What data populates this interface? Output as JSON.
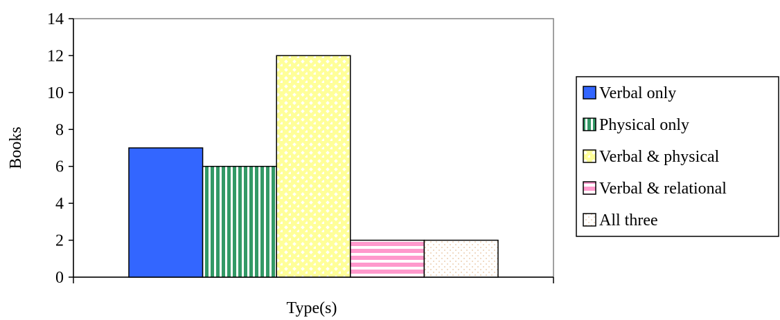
{
  "chart_data": {
    "type": "bar",
    "title": "",
    "xlabel": "Type(s)",
    "ylabel": "Books",
    "ylim": [
      0,
      14
    ],
    "yticks": [
      0,
      2,
      4,
      6,
      8,
      10,
      12,
      14
    ],
    "grid": false,
    "legend_position": "right",
    "series": [
      {
        "name": "Verbal only",
        "value": 7,
        "color": "#3366ff",
        "pattern": "solid"
      },
      {
        "name": "Physical only",
        "value": 6,
        "color": "#339966",
        "pattern": "vertical-stripes"
      },
      {
        "name": "Verbal & physical",
        "value": 12,
        "color": "#ffff99",
        "pattern": "diamond-dots"
      },
      {
        "name": "Verbal & relational",
        "value": 2,
        "color": "#ff99cc",
        "pattern": "horizontal-stripes"
      },
      {
        "name": "All three",
        "value": 2,
        "color": "#ffcc99",
        "pattern": "fine-dots"
      }
    ]
  }
}
